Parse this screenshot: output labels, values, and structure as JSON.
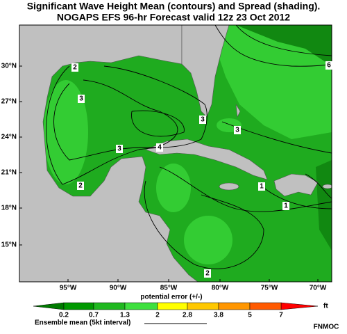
{
  "header": {
    "title_lines": [
      "Significant Wave Height Mean (contours) and Spread (shading).",
      "NOGAPS EFS 96-hr Forecast valid 12z 23 Oct 2012"
    ]
  },
  "map": {
    "lat_labels": [
      "30°N",
      "27°N",
      "24°N",
      "21°N",
      "18°N",
      "15°N"
    ],
    "lon_labels": [
      "95°W",
      "90°W",
      "85°W",
      "80°W",
      "75°W",
      "70°W"
    ],
    "contour_labels": [
      "2",
      "3",
      "3",
      "4",
      "3",
      "3",
      "2",
      "1",
      "1",
      "2",
      "6"
    ]
  },
  "legend": {
    "title": "potential error (+/-)",
    "ticks": [
      "0.2",
      "0.7",
      "1.3",
      "2",
      "2.8",
      "3.8",
      "5",
      "7"
    ],
    "unit": "ft",
    "mean_label": "Ensemble mean (5kt interval)"
  },
  "credit": "FNMOC"
}
